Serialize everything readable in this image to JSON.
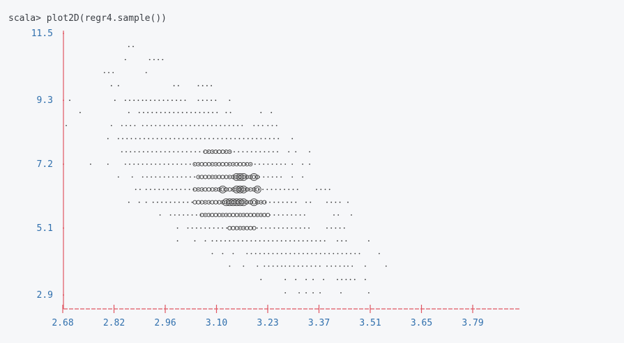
{
  "terminal": {
    "prompt": "scala>",
    "command": "plot2D(regr4.sample())"
  },
  "colors": {
    "background": "#f6f7f9",
    "axis": "#e05561",
    "tick_labels": "#2f6fad",
    "points": "#3a3a3a"
  },
  "chart_data": {
    "type": "scatter",
    "rendering": "ascii",
    "title": "",
    "xlabel": "",
    "ylabel": "",
    "grid": false,
    "legend": "none",
    "x_ticks": [
      "2.68",
      "2.82",
      "2.96",
      "3.10",
      "3.23",
      "3.37",
      "3.51",
      "3.65",
      "3.79"
    ],
    "y_ticks": [
      "11.5",
      "9.3",
      "7.2",
      "5.1",
      "2.9"
    ],
    "xlim": [
      2.68,
      3.93
    ],
    "ylim": [
      2.9,
      11.5
    ],
    "marker_levels": [
      "·",
      "∘",
      "○",
      "◯"
    ],
    "rows": [
      {
        "y": 11.5,
        "segments": []
      },
      {
        "y": 11.07,
        "segments": [
          [
            2.87,
            2.89,
            0
          ]
        ]
      },
      {
        "y": 10.64,
        "segments": [
          [
            2.86,
            2.86,
            0
          ],
          [
            2.93,
            2.97,
            0
          ]
        ]
      },
      {
        "y": 10.21,
        "segments": [
          [
            2.8,
            2.83,
            0
          ],
          [
            2.92,
            2.93,
            0
          ]
        ]
      },
      {
        "y": 9.78,
        "segments": [
          [
            2.82,
            2.82,
            0
          ],
          [
            2.84,
            2.85,
            0
          ],
          [
            3.0,
            3.02,
            0
          ],
          [
            3.07,
            3.11,
            0
          ]
        ]
      },
      {
        "y": 9.3,
        "segments": [
          [
            2.7,
            2.7,
            0
          ],
          [
            2.83,
            2.84,
            0
          ],
          [
            2.86,
            2.91,
            0
          ],
          [
            2.92,
            3.04,
            0
          ],
          [
            3.07,
            3.12,
            0
          ],
          [
            3.16,
            3.16,
            0
          ]
        ]
      },
      {
        "y": 8.9,
        "segments": [
          [
            2.73,
            2.73,
            0
          ],
          [
            2.87,
            2.88,
            0
          ],
          [
            2.9,
            3.13,
            0
          ],
          [
            3.15,
            3.17,
            0
          ],
          [
            3.25,
            3.25,
            0
          ],
          [
            3.28,
            3.28,
            0
          ]
        ]
      },
      {
        "y": 8.47,
        "segments": [
          [
            2.69,
            2.69,
            0
          ],
          [
            2.82,
            2.82,
            0
          ],
          [
            2.85,
            2.89,
            0
          ],
          [
            2.91,
            3.2,
            0
          ],
          [
            3.23,
            3.26,
            0
          ],
          [
            3.27,
            3.3,
            0
          ]
        ]
      },
      {
        "y": 8.04,
        "segments": [
          [
            2.81,
            2.81,
            0
          ],
          [
            2.84,
            3.3,
            0
          ],
          [
            3.34,
            3.35,
            0
          ]
        ]
      },
      {
        "y": 7.61,
        "segments": [
          [
            2.85,
            3.3,
            0
          ],
          [
            3.33,
            3.33,
            0
          ],
          [
            3.35,
            3.35,
            0
          ],
          [
            3.39,
            3.39,
            0
          ]
        ]
      },
      {
        "y": 7.2,
        "segments": [
          [
            2.76,
            2.76,
            0
          ],
          [
            2.81,
            2.81,
            0
          ],
          [
            2.86,
            3.32,
            0
          ],
          [
            3.34,
            3.34,
            0
          ],
          [
            3.37,
            3.37,
            0
          ],
          [
            3.39,
            3.39,
            0
          ]
        ]
      },
      {
        "y": 6.78,
        "segments": [
          [
            2.84,
            2.84,
            0
          ],
          [
            2.88,
            2.89,
            0
          ],
          [
            2.91,
            3.31,
            0
          ],
          [
            3.34,
            3.35,
            0
          ],
          [
            3.37,
            3.37,
            0
          ]
        ]
      },
      {
        "y": 6.37,
        "segments": [
          [
            2.89,
            2.91,
            0
          ],
          [
            2.92,
            3.36,
            0
          ],
          [
            3.41,
            3.45,
            0
          ]
        ]
      },
      {
        "y": 5.95,
        "segments": [
          [
            2.87,
            2.88,
            0
          ],
          [
            2.9,
            2.9,
            0
          ],
          [
            2.92,
            2.92,
            0
          ],
          [
            2.94,
            3.36,
            0
          ],
          [
            3.38,
            3.4,
            0
          ],
          [
            3.44,
            3.48,
            0
          ],
          [
            3.5,
            3.5,
            0
          ]
        ]
      },
      {
        "y": 5.53,
        "segments": [
          [
            2.96,
            2.96,
            0
          ],
          [
            2.99,
            3.38,
            0
          ],
          [
            3.46,
            3.48,
            0
          ],
          [
            3.51,
            3.51,
            0
          ]
        ]
      },
      {
        "y": 5.1,
        "segments": [
          [
            3.01,
            3.01,
            0
          ],
          [
            3.04,
            3.4,
            0
          ],
          [
            3.44,
            3.5,
            0
          ]
        ]
      },
      {
        "y": 4.68,
        "segments": [
          [
            3.01,
            3.01,
            0
          ],
          [
            3.06,
            3.07,
            0
          ],
          [
            3.09,
            3.09,
            0
          ],
          [
            3.11,
            3.44,
            0
          ],
          [
            3.47,
            3.5,
            0
          ],
          [
            3.56,
            3.56,
            0
          ]
        ]
      },
      {
        "y": 4.26,
        "segments": [
          [
            3.11,
            3.11,
            0
          ],
          [
            3.14,
            3.15,
            0
          ],
          [
            3.17,
            3.18,
            0
          ],
          [
            3.21,
            3.54,
            0
          ],
          [
            3.59,
            3.59,
            0
          ]
        ]
      },
      {
        "y": 3.85,
        "segments": [
          [
            3.16,
            3.16,
            0
          ],
          [
            3.2,
            3.21,
            0
          ],
          [
            3.24,
            3.24,
            0
          ],
          [
            3.26,
            3.31,
            0
          ],
          [
            3.32,
            3.42,
            0
          ],
          [
            3.44,
            3.49,
            0
          ],
          [
            3.5,
            3.52,
            0
          ],
          [
            3.55,
            3.55,
            0
          ],
          [
            3.61,
            3.61,
            0
          ]
        ]
      },
      {
        "y": 3.41,
        "segments": [
          [
            3.25,
            3.25,
            0
          ],
          [
            3.32,
            3.32,
            0
          ],
          [
            3.35,
            3.36,
            0
          ],
          [
            3.38,
            3.38,
            0
          ],
          [
            3.4,
            3.41,
            0
          ],
          [
            3.43,
            3.44,
            0
          ],
          [
            3.47,
            3.52,
            0
          ],
          [
            3.55,
            3.55,
            0
          ]
        ]
      },
      {
        "y": 2.97,
        "segments": [
          [
            3.32,
            3.32,
            0
          ],
          [
            3.36,
            3.36,
            0
          ],
          [
            3.38,
            3.38,
            0
          ],
          [
            3.4,
            3.4,
            0
          ],
          [
            3.42,
            3.42,
            0
          ],
          [
            3.48,
            3.48,
            0
          ],
          [
            3.56,
            3.56,
            0
          ]
        ]
      }
    ],
    "dense_cluster": [
      {
        "y": 7.61,
        "x": [
          3.09,
          3.1,
          3.11,
          3.12,
          3.13,
          3.14,
          3.15,
          3.16
        ],
        "level": 1
      },
      {
        "y": 7.2,
        "x": [
          3.06,
          3.07,
          3.08,
          3.09,
          3.1,
          3.11,
          3.12,
          3.13,
          3.14,
          3.15,
          3.16,
          3.17,
          3.18,
          3.19,
          3.2,
          3.21,
          3.22
        ],
        "level": 1
      },
      {
        "y": 6.78,
        "x": [
          3.07,
          3.08,
          3.09,
          3.1,
          3.11,
          3.12,
          3.13,
          3.14,
          3.15,
          3.16,
          3.17,
          3.18,
          3.19,
          3.2,
          3.21,
          3.22,
          3.23,
          3.24
        ],
        "level": 1
      },
      {
        "y": 6.78,
        "x": [
          3.18,
          3.19,
          3.2,
          3.23
        ],
        "level": 2
      },
      {
        "y": 6.37,
        "x": [
          3.06,
          3.07,
          3.08,
          3.09,
          3.1,
          3.11,
          3.12,
          3.13,
          3.14,
          3.15,
          3.16,
          3.17,
          3.18,
          3.19,
          3.2,
          3.21,
          3.22,
          3.23,
          3.24
        ],
        "level": 1
      },
      {
        "y": 6.37,
        "x": [
          3.14,
          3.18,
          3.19,
          3.2,
          3.24
        ],
        "level": 2
      },
      {
        "y": 5.95,
        "x": [
          3.06,
          3.07,
          3.08,
          3.09,
          3.1,
          3.11,
          3.12,
          3.13,
          3.14,
          3.15,
          3.16,
          3.17,
          3.18,
          3.19,
          3.2,
          3.21,
          3.22,
          3.23,
          3.24,
          3.25,
          3.26
        ],
        "level": 1
      },
      {
        "y": 5.95,
        "x": [
          3.15,
          3.16,
          3.17,
          3.18,
          3.19,
          3.2,
          3.23
        ],
        "level": 2
      },
      {
        "y": 5.53,
        "x": [
          3.08,
          3.09,
          3.1,
          3.11,
          3.12,
          3.13,
          3.14,
          3.15,
          3.16,
          3.17,
          3.18,
          3.19,
          3.2,
          3.21,
          3.22,
          3.23,
          3.24,
          3.25,
          3.26,
          3.27
        ],
        "level": 1
      },
      {
        "y": 5.1,
        "x": [
          3.16,
          3.17,
          3.18,
          3.19,
          3.2,
          3.21,
          3.22,
          3.23
        ],
        "level": 1
      }
    ]
  }
}
